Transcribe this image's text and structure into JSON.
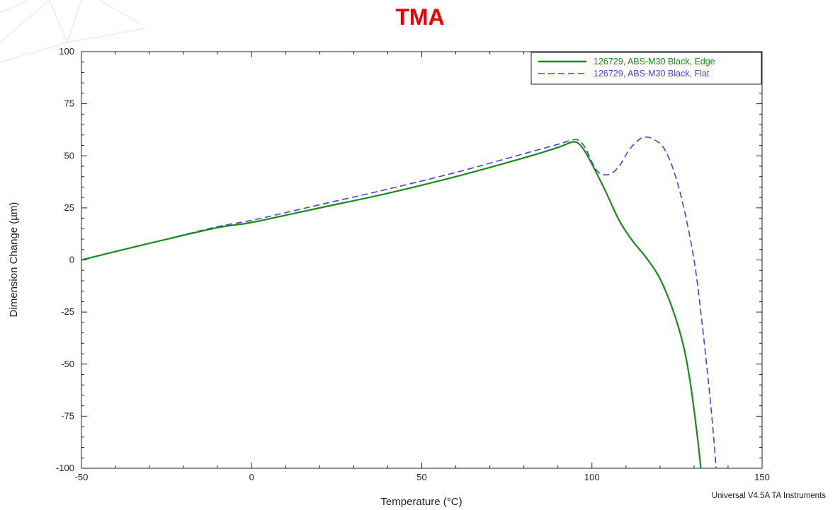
{
  "page_title": "TMA",
  "title_color": "#ee0000",
  "footer": "Universal V4.5A TA Instruments",
  "chart_data": {
    "type": "line",
    "title": "TMA",
    "xlabel": "Temperature (°C)",
    "ylabel": "Dimension Change (µm)",
    "xlim": [
      -50,
      150
    ],
    "ylim": [
      -100,
      100
    ],
    "xticks": [
      -50,
      0,
      50,
      100,
      150
    ],
    "yticks": [
      -100,
      -75,
      -50,
      -25,
      0,
      25,
      50,
      75,
      100
    ],
    "grid": false,
    "legend_position": "top-right",
    "series": [
      {
        "name": "126729, ABS-M30 Black, Edge",
        "color": "#1a8a1a",
        "style": "solid",
        "x": [
          -50,
          -30,
          -10,
          0,
          20,
          40,
          60,
          80,
          90,
          94,
          96,
          98,
          100,
          104,
          108,
          112,
          116,
          120,
          124,
          127,
          129,
          131,
          132
        ],
        "y": [
          0,
          8,
          15.5,
          18,
          25,
          32,
          40,
          49,
          54,
          56.5,
          56,
          52,
          46,
          33,
          19,
          9,
          1,
          -9,
          -25,
          -42,
          -60,
          -85,
          -100
        ]
      },
      {
        "name": "126729, ABS-M30 Black, Flat",
        "color": "#4444dd",
        "style": "dashed",
        "x": [
          -50,
          -30,
          -10,
          0,
          20,
          40,
          60,
          80,
          90,
          94,
          96,
          98,
          100,
          102,
          105,
          108,
          111,
          114,
          116,
          118,
          121,
          124,
          127,
          130,
          132,
          134,
          135.5,
          136.5
        ],
        "y": [
          0,
          8,
          16,
          19,
          26.5,
          34,
          42,
          51,
          55.5,
          57.5,
          57.5,
          54,
          47,
          42,
          41,
          45,
          53,
          58,
          59,
          58,
          54,
          43,
          25,
          0,
          -25,
          -55,
          -80,
          -100
        ]
      }
    ]
  }
}
